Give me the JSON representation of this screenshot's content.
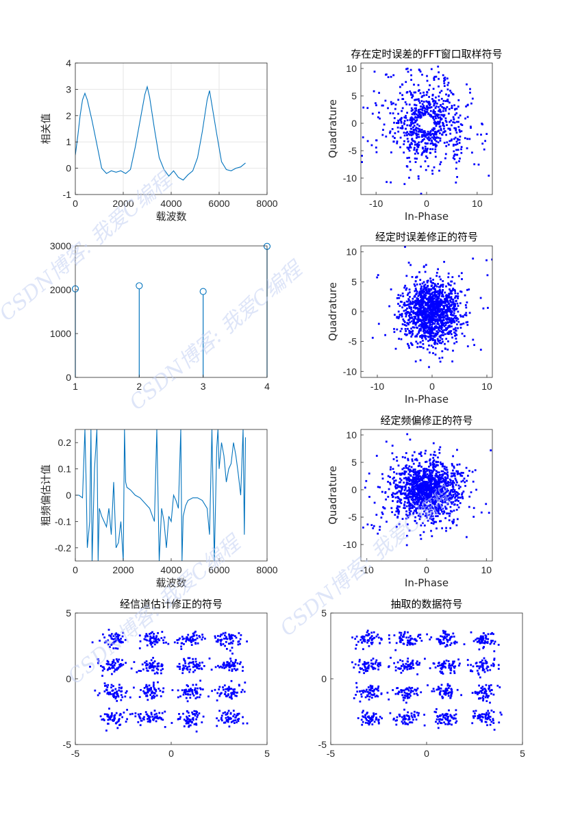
{
  "colors": {
    "line": "#0072BD",
    "scatter": "#0000FF",
    "grid": "#e6e6e6",
    "axis": "#262626",
    "watermark": "#c4d1f3"
  },
  "watermarks": [
    "CSDN博客: 我爱C编程",
    "CSDN博客: 我爱C编程",
    "CSDN博客: 我爱C编程",
    "CSDN博客: 我爱C编程"
  ],
  "chart_data": [
    {
      "id": "p1",
      "type": "line",
      "title": "",
      "xlabel": "载波数",
      "ylabel": "相关值",
      "xlim": [
        0,
        8000
      ],
      "ylim": [
        -1,
        4
      ],
      "grid": true,
      "xticks": [
        "0",
        "2000",
        "4000",
        "6000",
        "8000"
      ],
      "yticks": [
        "-1",
        "0",
        "1",
        "2",
        "3",
        "4"
      ],
      "x": [
        0,
        100,
        200,
        300,
        400,
        500,
        700,
        900,
        1100,
        1300,
        1500,
        1700,
        1900,
        2100,
        2300,
        2500,
        2700,
        2900,
        3000,
        3100,
        3300,
        3500,
        3700,
        3900,
        4100,
        4300,
        4500,
        4700,
        4900,
        5100,
        5300,
        5500,
        5600,
        5700,
        5900,
        6100,
        6300,
        6500,
        6700,
        6900,
        7100
      ],
      "y": [
        0.5,
        1.2,
        2.0,
        2.6,
        2.85,
        2.6,
        1.8,
        0.9,
        0.0,
        -0.2,
        -0.1,
        -0.15,
        -0.1,
        -0.2,
        -0.05,
        0.8,
        1.8,
        2.8,
        3.1,
        2.7,
        1.5,
        0.4,
        -0.05,
        -0.3,
        -0.1,
        -0.35,
        -0.45,
        -0.25,
        -0.1,
        0.4,
        1.4,
        2.6,
        2.95,
        2.4,
        1.3,
        0.25,
        -0.05,
        -0.1,
        0.0,
        0.05,
        0.2
      ]
    },
    {
      "id": "p2",
      "type": "stem",
      "title": "",
      "xlabel": "",
      "ylabel": "",
      "xlim": [
        1,
        4
      ],
      "ylim": [
        0,
        3000
      ],
      "grid": false,
      "xticks": [
        "1",
        "2",
        "3",
        "4"
      ],
      "yticks": [
        "0",
        "1000",
        "2000",
        "3000"
      ],
      "x": [
        1,
        2,
        3,
        4
      ],
      "y": [
        2020,
        2090,
        1960,
        2990
      ]
    },
    {
      "id": "p3",
      "type": "line",
      "title": "",
      "xlabel": "载波数",
      "ylabel": "粗频偏估计值",
      "xlim": [
        0,
        8000
      ],
      "ylim": [
        -0.25,
        0.25
      ],
      "grid": false,
      "xticks": [
        "0",
        "2000",
        "4000",
        "6000",
        "8000"
      ],
      "yticks": [
        "-0.2",
        "-0.1",
        "0",
        "0.1",
        "0.2"
      ],
      "x": [
        0,
        150,
        300,
        400,
        450,
        500,
        600,
        650,
        700,
        800,
        900,
        950,
        1000,
        1100,
        1200,
        1300,
        1400,
        1500,
        1600,
        1700,
        1800,
        1900,
        2000,
        2050,
        2100,
        2150,
        2300,
        2500,
        2700,
        2900,
        3100,
        3300,
        3400,
        3500,
        3600,
        3700,
        3800,
        3900,
        4000,
        4100,
        4200,
        4300,
        4400,
        4450,
        4500,
        4600,
        4700,
        4900,
        5100,
        5300,
        5500,
        5600,
        5700,
        5800,
        5900,
        5950,
        6000,
        6100,
        6200,
        6300,
        6400,
        6500,
        6600,
        6700,
        6800,
        6900,
        7000,
        7050,
        7100
      ],
      "y": [
        0.0,
        0.0,
        -0.01,
        0.25,
        0.05,
        -0.2,
        -0.1,
        0.25,
        -0.25,
        0.1,
        0.25,
        -0.25,
        -0.05,
        -0.08,
        -0.1,
        -0.12,
        -0.05,
        -0.15,
        0.05,
        -0.2,
        -0.18,
        -0.1,
        -0.25,
        0.25,
        0.05,
        0.03,
        0.02,
        0.0,
        -0.01,
        -0.03,
        -0.05,
        -0.1,
        0.25,
        -0.25,
        -0.05,
        -0.1,
        -0.2,
        -0.08,
        -0.1,
        0.0,
        -0.02,
        -0.05,
        0.25,
        -0.25,
        -0.08,
        -0.04,
        -0.02,
        -0.01,
        -0.01,
        -0.02,
        -0.05,
        -0.15,
        0.25,
        -0.25,
        0.18,
        0.25,
        0.1,
        0.2,
        0.15,
        0.05,
        0.1,
        0.12,
        0.2,
        0.15,
        0.08,
        0.0,
        0.25,
        -0.15,
        0.22
      ]
    },
    {
      "id": "s1",
      "type": "scatter",
      "title": "存在定时误差的FFT窗口取样符号",
      "xlabel": "In-Phase",
      "ylabel": "Quadrature",
      "xlim": [
        -13,
        13
      ],
      "ylim": [
        -13,
        11
      ],
      "grid": false,
      "xticks": [
        "-10",
        "0",
        "10"
      ],
      "yticks": [
        "-10",
        "-5",
        "0",
        "5",
        "10"
      ],
      "distribution": "ring",
      "center": [
        0,
        0
      ],
      "spread": 4.5
    },
    {
      "id": "s2",
      "type": "scatter",
      "title": "经定时误差修正的符号",
      "xlabel": "In-Phase",
      "ylabel": "Quadrature",
      "xlim": [
        -13,
        11
      ],
      "ylim": [
        -11,
        11
      ],
      "grid": false,
      "xticks": [
        "-10",
        "0",
        "10"
      ],
      "yticks": [
        "-10",
        "-5",
        "0",
        "5",
        "10"
      ],
      "distribution": "gaussian",
      "center": [
        0,
        0
      ],
      "spread": 2.6
    },
    {
      "id": "s3",
      "type": "scatter",
      "title": "经定频偏修正的符号",
      "xlabel": "In-Phase",
      "ylabel": "Quadrature",
      "xlim": [
        -11,
        11
      ],
      "ylim": [
        -13,
        11
      ],
      "grid": false,
      "xticks": [
        "-10",
        "0",
        "10"
      ],
      "yticks": [
        "-10",
        "-5",
        "0",
        "5",
        "10"
      ],
      "distribution": "gaussian",
      "center": [
        0,
        0
      ],
      "spread": 2.8
    },
    {
      "id": "s4",
      "type": "scatter",
      "title": "经信道估计修正的符号",
      "xlabel": "",
      "ylabel": "",
      "xlim": [
        -5,
        5
      ],
      "ylim": [
        -5,
        5
      ],
      "grid": false,
      "xticks": [
        "-5",
        "0",
        "5"
      ],
      "yticks": [
        "-5",
        "0",
        "5"
      ],
      "distribution": "qam16",
      "levels": [
        -3,
        -1,
        1,
        3
      ],
      "spread": 0.35
    },
    {
      "id": "s5",
      "type": "scatter",
      "title": "抽取的数据符号",
      "xlabel": "",
      "ylabel": "",
      "xlim": [
        -5,
        5
      ],
      "ylim": [
        -5,
        5
      ],
      "grid": false,
      "xticks": [
        "-5",
        "0",
        "5"
      ],
      "yticks": [
        "-5",
        "0",
        "5"
      ],
      "distribution": "qam16",
      "levels": [
        -3,
        -1,
        1,
        3
      ],
      "spread": 0.35
    }
  ]
}
